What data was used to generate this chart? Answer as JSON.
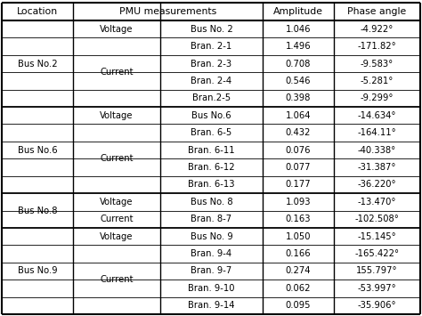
{
  "rows": [
    {
      "location": "Bus No.2",
      "type": "Voltage",
      "measurement": "Bus No. 2",
      "amplitude": "1.046",
      "phase": "-4.922°",
      "loc_group": "Bus No.2",
      "type_group": "Voltage"
    },
    {
      "location": "",
      "type": "Current",
      "measurement": "Bran. 2-1",
      "amplitude": "1.496",
      "phase": "-171.82°",
      "loc_group": "",
      "type_group": "Current"
    },
    {
      "location": "",
      "type": "",
      "measurement": "Bran. 2-3",
      "amplitude": "0.708",
      "phase": "-9.583°",
      "loc_group": "",
      "type_group": ""
    },
    {
      "location": "",
      "type": "",
      "measurement": "Bran. 2-4",
      "amplitude": "0.546",
      "phase": "-5.281°",
      "loc_group": "",
      "type_group": ""
    },
    {
      "location": "",
      "type": "",
      "measurement": "Bran.2-5",
      "amplitude": "0.398",
      "phase": "-9.299°",
      "loc_group": "",
      "type_group": ""
    },
    {
      "location": "Bus No.6",
      "type": "Voltage",
      "measurement": "Bus No.6",
      "amplitude": "1.064",
      "phase": "-14.634°",
      "loc_group": "Bus No.6",
      "type_group": "Voltage"
    },
    {
      "location": "",
      "type": "Current",
      "measurement": "Bran. 6-5",
      "amplitude": "0.432",
      "phase": "-164.11°",
      "loc_group": "",
      "type_group": "Current"
    },
    {
      "location": "",
      "type": "",
      "measurement": "Bran. 6-11",
      "amplitude": "0.076",
      "phase": "-40.338°",
      "loc_group": "",
      "type_group": ""
    },
    {
      "location": "",
      "type": "",
      "measurement": "Bran. 6-12",
      "amplitude": "0.077",
      "phase": "-31.387°",
      "loc_group": "",
      "type_group": ""
    },
    {
      "location": "",
      "type": "",
      "measurement": "Bran. 6-13",
      "amplitude": "0.177",
      "phase": "-36.220°",
      "loc_group": "",
      "type_group": ""
    },
    {
      "location": "Bus No.8",
      "type": "Voltage",
      "measurement": "Bus No. 8",
      "amplitude": "1.093",
      "phase": "-13.470°",
      "loc_group": "Bus No.8",
      "type_group": "Voltage"
    },
    {
      "location": "",
      "type": "Current",
      "measurement": "Bran. 8-7",
      "amplitude": "0.163",
      "phase": "-102.508°",
      "loc_group": "",
      "type_group": "Current"
    },
    {
      "location": "Bus No.9",
      "type": "Voltage",
      "measurement": "Bus No. 9",
      "amplitude": "1.050",
      "phase": "-15.145°",
      "loc_group": "Bus No.9",
      "type_group": "Voltage"
    },
    {
      "location": "",
      "type": "Current",
      "measurement": "Bran. 9-4",
      "amplitude": "0.166",
      "phase": "-165.422°",
      "loc_group": "",
      "type_group": "Current"
    },
    {
      "location": "",
      "type": "",
      "measurement": "Bran. 9-7",
      "amplitude": "0.274",
      "phase": "155.797°",
      "loc_group": "",
      "type_group": ""
    },
    {
      "location": "",
      "type": "",
      "measurement": "Bran. 9-10",
      "amplitude": "0.062",
      "phase": "-53.997°",
      "loc_group": "",
      "type_group": ""
    },
    {
      "location": "",
      "type": "",
      "measurement": "Bran. 9-14",
      "amplitude": "0.095",
      "phase": "-35.906°",
      "loc_group": "",
      "type_group": ""
    }
  ],
  "loc_groups": [
    {
      "name": "Bus No.2",
      "start": 0,
      "end": 4
    },
    {
      "name": "Bus No.6",
      "start": 5,
      "end": 9
    },
    {
      "name": "Bus No.8",
      "start": 10,
      "end": 11
    },
    {
      "name": "Bus No.9",
      "start": 12,
      "end": 16
    }
  ],
  "type_groups": [
    {
      "name": "Voltage",
      "start": 0,
      "end": 0
    },
    {
      "name": "Current",
      "start": 1,
      "end": 4
    },
    {
      "name": "Voltage",
      "start": 5,
      "end": 5
    },
    {
      "name": "Current",
      "start": 6,
      "end": 9
    },
    {
      "name": "Voltage",
      "start": 10,
      "end": 10
    },
    {
      "name": "Current",
      "start": 11,
      "end": 11
    },
    {
      "name": "Voltage",
      "start": 12,
      "end": 12
    },
    {
      "name": "Current",
      "start": 13,
      "end": 16
    }
  ],
  "bg_color": "#ffffff",
  "text_color": "#000000",
  "line_color": "#000000",
  "font_size": 7.2,
  "header_font_size": 7.8
}
